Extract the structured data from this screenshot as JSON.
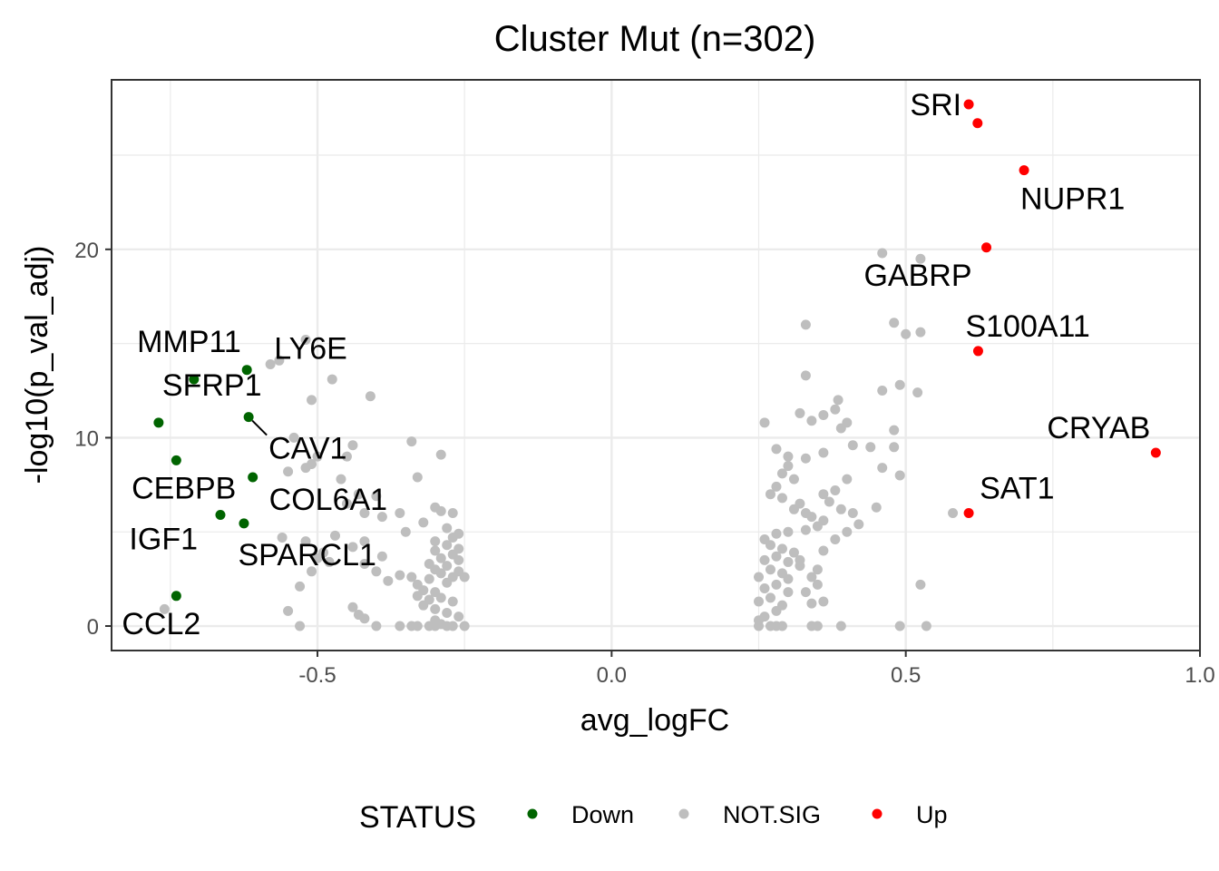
{
  "chart_data": {
    "type": "scatter",
    "title": "Cluster Mut (n=302)",
    "xlabel": "avg_logFC",
    "ylabel": "-log10(p_val_adj)",
    "xlim": [
      -0.85,
      1.0
    ],
    "ylim": [
      -1.3,
      29.0
    ],
    "xticks": [
      -0.5,
      0.0,
      0.5,
      1.0
    ],
    "xtick_labels": [
      "-0.5",
      "0.0",
      "0.5",
      "1.0"
    ],
    "yticks": [
      0,
      10,
      20
    ],
    "ytick_labels": [
      "0",
      "10",
      "20"
    ],
    "grid": true,
    "legend": {
      "title": "STATUS",
      "position": "bottom",
      "entries": [
        {
          "name": "Down",
          "color": "#006400"
        },
        {
          "name": "NOT.SIG",
          "color": "#bebebe"
        },
        {
          "name": "Up",
          "color": "#ff0000"
        }
      ]
    },
    "series": [
      {
        "name": "Down",
        "color": "#006400",
        "points": [
          {
            "x": -0.71,
            "y": 13.1
          },
          {
            "x": -0.62,
            "y": 13.6
          },
          {
            "x": -0.77,
            "y": 10.8
          },
          {
            "x": -0.617,
            "y": 11.1
          },
          {
            "x": -0.74,
            "y": 8.8
          },
          {
            "x": -0.61,
            "y": 7.9
          },
          {
            "x": -0.665,
            "y": 5.9
          },
          {
            "x": -0.625,
            "y": 5.45
          },
          {
            "x": -0.74,
            "y": 1.6
          }
        ]
      },
      {
        "name": "NOT.SIG",
        "color": "#bebebe",
        "points": [
          {
            "x": -0.58,
            "y": 13.9
          },
          {
            "x": -0.565,
            "y": 14.1
          },
          {
            "x": -0.52,
            "y": 15.2
          },
          {
            "x": -0.475,
            "y": 13.1
          },
          {
            "x": -0.51,
            "y": 12.0
          },
          {
            "x": -0.41,
            "y": 12.2
          },
          {
            "x": -0.54,
            "y": 10.0
          },
          {
            "x": -0.5,
            "y": 9.0
          },
          {
            "x": -0.45,
            "y": 9.0
          },
          {
            "x": -0.44,
            "y": 9.6
          },
          {
            "x": -0.55,
            "y": 8.2
          },
          {
            "x": -0.52,
            "y": 8.4
          },
          {
            "x": -0.51,
            "y": 8.6
          },
          {
            "x": -0.46,
            "y": 7.8
          },
          {
            "x": -0.43,
            "y": 7.0
          },
          {
            "x": -0.4,
            "y": 6.9
          },
          {
            "x": -0.45,
            "y": 6.5
          },
          {
            "x": -0.42,
            "y": 6.0
          },
          {
            "x": -0.39,
            "y": 5.8
          },
          {
            "x": -0.34,
            "y": 9.8
          },
          {
            "x": -0.33,
            "y": 7.9
          },
          {
            "x": -0.29,
            "y": 9.1
          },
          {
            "x": -0.36,
            "y": 6.0
          },
          {
            "x": -0.32,
            "y": 5.5
          },
          {
            "x": -0.35,
            "y": 5.0
          },
          {
            "x": -0.3,
            "y": 6.3
          },
          {
            "x": -0.29,
            "y": 6.1
          },
          {
            "x": -0.27,
            "y": 6.0
          },
          {
            "x": -0.28,
            "y": 5.2
          },
          {
            "x": -0.26,
            "y": 4.9
          },
          {
            "x": -0.27,
            "y": 4.7
          },
          {
            "x": -0.3,
            "y": 4.5
          },
          {
            "x": -0.28,
            "y": 4.3
          },
          {
            "x": -0.26,
            "y": 4.1
          },
          {
            "x": -0.3,
            "y": 4.0
          },
          {
            "x": -0.27,
            "y": 3.8
          },
          {
            "x": -0.29,
            "y": 3.6
          },
          {
            "x": -0.26,
            "y": 3.5
          },
          {
            "x": -0.31,
            "y": 3.3
          },
          {
            "x": -0.28,
            "y": 3.2
          },
          {
            "x": -0.3,
            "y": 3.0
          },
          {
            "x": -0.26,
            "y": 2.9
          },
          {
            "x": -0.29,
            "y": 2.8
          },
          {
            "x": -0.27,
            "y": 2.6
          },
          {
            "x": -0.31,
            "y": 2.5
          },
          {
            "x": -0.28,
            "y": 2.3
          },
          {
            "x": -0.25,
            "y": 2.6
          },
          {
            "x": -0.33,
            "y": 2.2
          },
          {
            "x": -0.34,
            "y": 2.6
          },
          {
            "x": -0.32,
            "y": 1.9
          },
          {
            "x": -0.3,
            "y": 1.8
          },
          {
            "x": -0.33,
            "y": 1.6
          },
          {
            "x": -0.31,
            "y": 1.4
          },
          {
            "x": -0.29,
            "y": 1.5
          },
          {
            "x": -0.27,
            "y": 1.3
          },
          {
            "x": -0.32,
            "y": 1.1
          },
          {
            "x": -0.3,
            "y": 0.9
          },
          {
            "x": -0.28,
            "y": 0.7
          },
          {
            "x": -0.26,
            "y": 0.5
          },
          {
            "x": -0.3,
            "y": 0.3
          },
          {
            "x": -0.29,
            "y": 0.1
          },
          {
            "x": -0.27,
            "y": 0.0
          },
          {
            "x": -0.25,
            "y": 0.0
          },
          {
            "x": -0.28,
            "y": 0.0
          },
          {
            "x": -0.3,
            "y": 0.0
          },
          {
            "x": -0.31,
            "y": 0.0
          },
          {
            "x": -0.33,
            "y": 0.0
          },
          {
            "x": -0.34,
            "y": 0.0
          },
          {
            "x": -0.36,
            "y": 0.0
          },
          {
            "x": -0.4,
            "y": 0.0
          },
          {
            "x": -0.42,
            "y": 0.4
          },
          {
            "x": -0.43,
            "y": 0.6
          },
          {
            "x": -0.44,
            "y": 1.0
          },
          {
            "x": -0.38,
            "y": 2.4
          },
          {
            "x": -0.36,
            "y": 2.7
          },
          {
            "x": -0.4,
            "y": 2.9
          },
          {
            "x": -0.42,
            "y": 3.3
          },
          {
            "x": -0.39,
            "y": 3.7
          },
          {
            "x": -0.42,
            "y": 4.5
          },
          {
            "x": -0.44,
            "y": 4.2
          },
          {
            "x": -0.47,
            "y": 4.8
          },
          {
            "x": -0.49,
            "y": 3.9
          },
          {
            "x": -0.5,
            "y": 3.6
          },
          {
            "x": -0.48,
            "y": 3.4
          },
          {
            "x": -0.52,
            "y": 4.5
          },
          {
            "x": -0.56,
            "y": 4.7
          },
          {
            "x": -0.51,
            "y": 2.9
          },
          {
            "x": -0.53,
            "y": 2.1
          },
          {
            "x": -0.55,
            "y": 0.8
          },
          {
            "x": -0.53,
            "y": 0.0
          },
          {
            "x": -0.76,
            "y": 0.9
          },
          {
            "x": 0.26,
            "y": 10.8
          },
          {
            "x": 0.28,
            "y": 9.4
          },
          {
            "x": 0.3,
            "y": 9.0
          },
          {
            "x": 0.33,
            "y": 16.0
          },
          {
            "x": 0.33,
            "y": 13.3
          },
          {
            "x": 0.32,
            "y": 11.3
          },
          {
            "x": 0.34,
            "y": 10.9
          },
          {
            "x": 0.36,
            "y": 11.2
          },
          {
            "x": 0.38,
            "y": 11.5
          },
          {
            "x": 0.385,
            "y": 12.0
          },
          {
            "x": 0.39,
            "y": 10.5
          },
          {
            "x": 0.4,
            "y": 10.8
          },
          {
            "x": 0.41,
            "y": 9.6
          },
          {
            "x": 0.36,
            "y": 9.2
          },
          {
            "x": 0.33,
            "y": 8.9
          },
          {
            "x": 0.3,
            "y": 8.5
          },
          {
            "x": 0.29,
            "y": 8.1
          },
          {
            "x": 0.31,
            "y": 7.8
          },
          {
            "x": 0.28,
            "y": 7.4
          },
          {
            "x": 0.27,
            "y": 7.0
          },
          {
            "x": 0.29,
            "y": 6.8
          },
          {
            "x": 0.32,
            "y": 6.5
          },
          {
            "x": 0.31,
            "y": 6.2
          },
          {
            "x": 0.33,
            "y": 6.0
          },
          {
            "x": 0.34,
            "y": 5.8
          },
          {
            "x": 0.36,
            "y": 5.6
          },
          {
            "x": 0.35,
            "y": 5.3
          },
          {
            "x": 0.33,
            "y": 5.1
          },
          {
            "x": 0.3,
            "y": 5.0
          },
          {
            "x": 0.28,
            "y": 4.9
          },
          {
            "x": 0.26,
            "y": 4.6
          },
          {
            "x": 0.27,
            "y": 4.3
          },
          {
            "x": 0.29,
            "y": 4.1
          },
          {
            "x": 0.31,
            "y": 3.9
          },
          {
            "x": 0.28,
            "y": 3.7
          },
          {
            "x": 0.26,
            "y": 3.5
          },
          {
            "x": 0.3,
            "y": 3.4
          },
          {
            "x": 0.32,
            "y": 3.2
          },
          {
            "x": 0.27,
            "y": 3.0
          },
          {
            "x": 0.29,
            "y": 2.8
          },
          {
            "x": 0.25,
            "y": 2.6
          },
          {
            "x": 0.3,
            "y": 2.5
          },
          {
            "x": 0.28,
            "y": 2.2
          },
          {
            "x": 0.26,
            "y": 2.0
          },
          {
            "x": 0.3,
            "y": 1.8
          },
          {
            "x": 0.27,
            "y": 1.5
          },
          {
            "x": 0.25,
            "y": 1.3
          },
          {
            "x": 0.29,
            "y": 1.1
          },
          {
            "x": 0.28,
            "y": 0.8
          },
          {
            "x": 0.26,
            "y": 0.5
          },
          {
            "x": 0.25,
            "y": 0.3
          },
          {
            "x": 0.27,
            "y": 0.0
          },
          {
            "x": 0.25,
            "y": 0.0
          },
          {
            "x": 0.28,
            "y": 0.0
          },
          {
            "x": 0.29,
            "y": 0.0
          },
          {
            "x": 0.34,
            "y": 0.0
          },
          {
            "x": 0.35,
            "y": 0.0
          },
          {
            "x": 0.39,
            "y": 0.0
          },
          {
            "x": 0.34,
            "y": 1.2
          },
          {
            "x": 0.36,
            "y": 1.3
          },
          {
            "x": 0.33,
            "y": 1.8
          },
          {
            "x": 0.35,
            "y": 2.2
          },
          {
            "x": 0.34,
            "y": 2.6
          },
          {
            "x": 0.32,
            "y": 3.5
          },
          {
            "x": 0.35,
            "y": 3.0
          },
          {
            "x": 0.36,
            "y": 4.0
          },
          {
            "x": 0.38,
            "y": 4.6
          },
          {
            "x": 0.4,
            "y": 5.0
          },
          {
            "x": 0.39,
            "y": 6.2
          },
          {
            "x": 0.37,
            "y": 6.6
          },
          {
            "x": 0.36,
            "y": 7.0
          },
          {
            "x": 0.38,
            "y": 7.2
          },
          {
            "x": 0.4,
            "y": 7.8
          },
          {
            "x": 0.41,
            "y": 6.0
          },
          {
            "x": 0.42,
            "y": 5.4
          },
          {
            "x": 0.44,
            "y": 9.5
          },
          {
            "x": 0.45,
            "y": 6.3
          },
          {
            "x": 0.46,
            "y": 8.4
          },
          {
            "x": 0.48,
            "y": 9.5
          },
          {
            "x": 0.49,
            "y": 8.0
          },
          {
            "x": 0.48,
            "y": 10.4
          },
          {
            "x": 0.46,
            "y": 12.5
          },
          {
            "x": 0.49,
            "y": 12.8
          },
          {
            "x": 0.52,
            "y": 12.4
          },
          {
            "x": 0.48,
            "y": 16.1
          },
          {
            "x": 0.5,
            "y": 15.5
          },
          {
            "x": 0.525,
            "y": 15.6
          },
          {
            "x": 0.46,
            "y": 19.8
          },
          {
            "x": 0.525,
            "y": 19.5
          },
          {
            "x": 0.58,
            "y": 6.0
          },
          {
            "x": 0.525,
            "y": 2.2
          },
          {
            "x": 0.49,
            "y": 0.0
          },
          {
            "x": 0.535,
            "y": 0.0
          }
        ]
      },
      {
        "name": "Up",
        "color": "#ff0000",
        "points": [
          {
            "x": 0.607,
            "y": 27.7
          },
          {
            "x": 0.622,
            "y": 26.7
          },
          {
            "x": 0.701,
            "y": 24.2
          },
          {
            "x": 0.637,
            "y": 20.1
          },
          {
            "x": 0.623,
            "y": 14.6
          },
          {
            "x": 0.607,
            "y": 6.0
          },
          {
            "x": 0.925,
            "y": 9.2
          }
        ]
      }
    ],
    "labels": [
      {
        "text": "SRI",
        "x": 0.607,
        "y": 27.7
      },
      {
        "text": "NUPR1",
        "x": 0.701,
        "y": 24.2
      },
      {
        "text": "GABRP",
        "x": 0.637,
        "y": 20.1
      },
      {
        "text": "S100A11",
        "x": 0.623,
        "y": 14.6
      },
      {
        "text": "CRYAB",
        "x": 0.925,
        "y": 9.2
      },
      {
        "text": "SAT1",
        "x": 0.607,
        "y": 6.0
      },
      {
        "text": "MMP11",
        "x": -0.71,
        "y": 13.1
      },
      {
        "text": "LY6E",
        "x": -0.62,
        "y": 13.6
      },
      {
        "text": "SFRP1",
        "x": -0.77,
        "y": 10.8
      },
      {
        "text": "CAV1",
        "x": -0.617,
        "y": 11.1
      },
      {
        "text": "CEBPB",
        "x": -0.74,
        "y": 8.8
      },
      {
        "text": "COL6A1",
        "x": -0.61,
        "y": 7.9
      },
      {
        "text": "IGF1",
        "x": -0.665,
        "y": 5.9
      },
      {
        "text": "SPARCL1",
        "x": -0.625,
        "y": 5.45
      },
      {
        "text": "CCL2",
        "x": -0.74,
        "y": 1.6
      }
    ]
  }
}
